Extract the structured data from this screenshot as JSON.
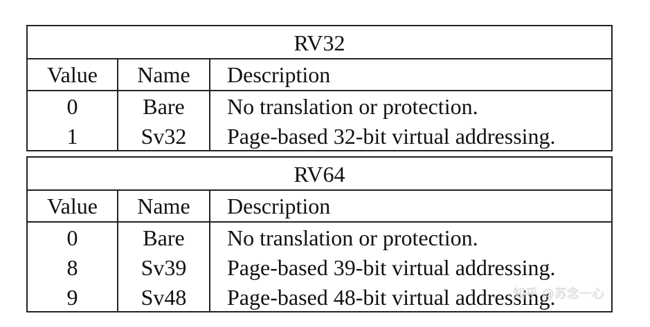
{
  "tables": [
    {
      "title": "RV32",
      "headers": {
        "value": "Value",
        "name": "Name",
        "description": "Description"
      },
      "rows": [
        {
          "value": "0",
          "name": "Bare",
          "description": "No translation or protection."
        },
        {
          "value": "1",
          "name": "Sv32",
          "description": "Page-based 32-bit virtual addressing."
        }
      ]
    },
    {
      "title": "RV64",
      "headers": {
        "value": "Value",
        "name": "Name",
        "description": "Description"
      },
      "rows": [
        {
          "value": "0",
          "name": "Bare",
          "description": "No translation or protection."
        },
        {
          "value": "8",
          "name": "Sv39",
          "description": "Page-based 39-bit virtual addressing."
        },
        {
          "value": "9",
          "name": "Sv48",
          "description": "Page-based 48-bit virtual addressing."
        }
      ]
    }
  ],
  "watermark": "知乎 @苏念一心"
}
